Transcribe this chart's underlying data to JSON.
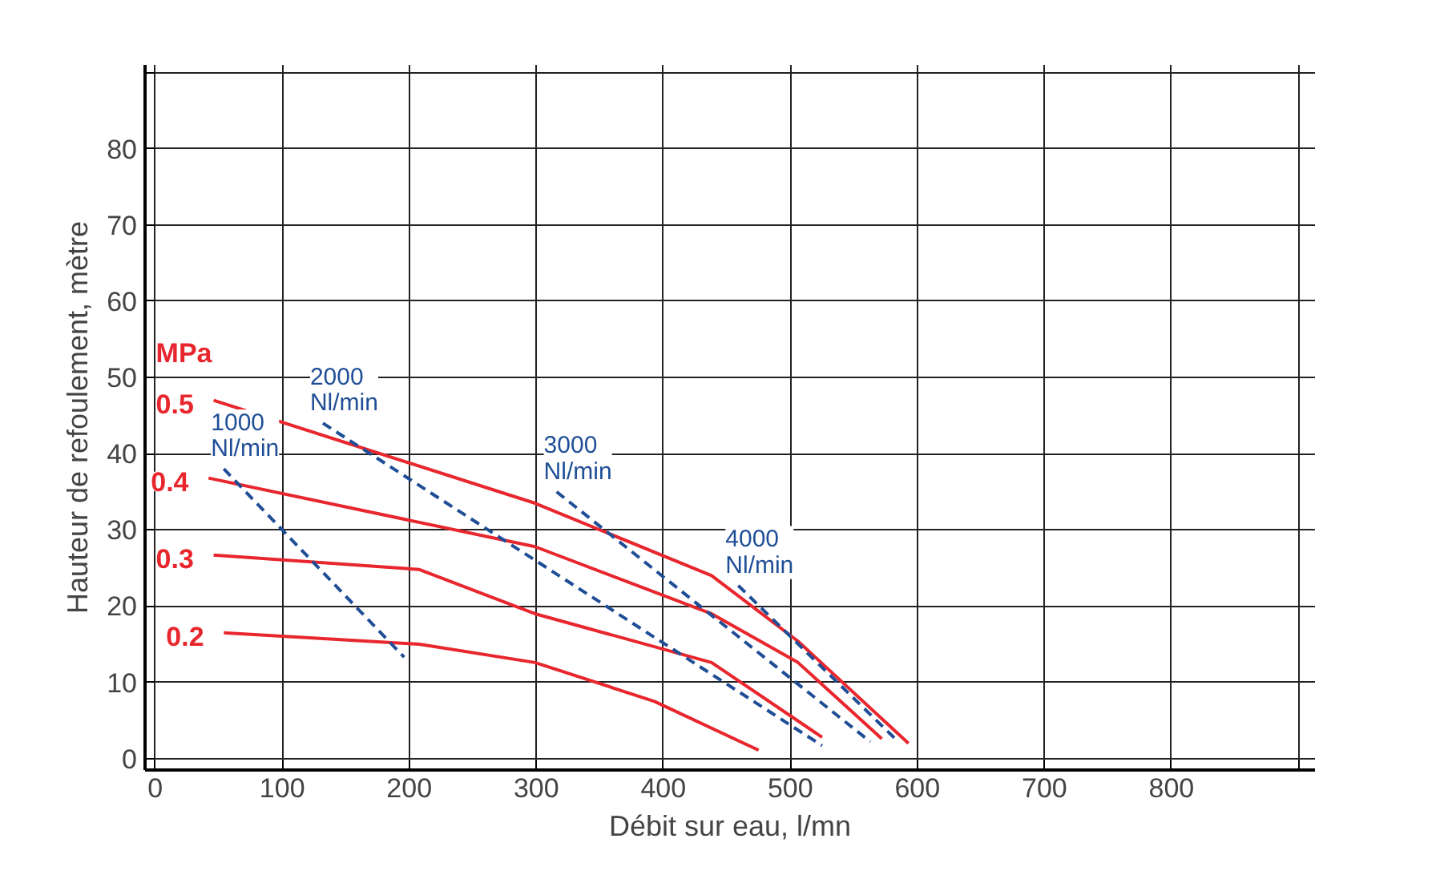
{
  "chart_data": {
    "type": "line",
    "xlabel": "Débit sur eau, l/mn",
    "ylabel": "Hauteur de refoulement, mètre",
    "xlim": [
      -8,
      913
    ],
    "ylim": [
      -1.5,
      91
    ],
    "xticks": [
      0,
      100,
      200,
      300,
      400,
      500,
      600,
      700,
      800,
      {
        "value": 900,
        "label": null
      }
    ],
    "yticks": [
      0,
      10,
      20,
      30,
      40,
      50,
      60,
      70,
      80,
      {
        "value": 90,
        "label": null
      }
    ],
    "grid": true,
    "annotations": [
      "MPa"
    ],
    "series": [
      {
        "name": "0.5",
        "color": "#e8262d",
        "line_style": "solid",
        "x": [
          46,
          299,
          438,
          506,
          593
        ],
        "values": [
          47,
          33.5,
          24,
          15.4,
          2
        ]
      },
      {
        "name": "0.4",
        "color": "#e8262d",
        "line_style": "solid",
        "x": [
          42,
          299,
          438,
          506,
          572
        ],
        "values": [
          36.8,
          27.8,
          19,
          12.6,
          2.6
        ]
      },
      {
        "name": "0.3",
        "color": "#e8262d",
        "line_style": "solid",
        "x": [
          46,
          208,
          299,
          438,
          525
        ],
        "values": [
          26.7,
          24.8,
          19,
          12.6,
          2.8
        ]
      },
      {
        "name": "0.2",
        "color": "#e8262d",
        "line_style": "solid",
        "x": [
          54,
          208,
          299,
          393,
          475
        ],
        "values": [
          16.5,
          15,
          12.6,
          7.5,
          1.1
        ]
      },
      {
        "name": "1000 Nl/min",
        "color": "#1f4e96",
        "line_style": "dashed",
        "x": [
          54,
          196
        ],
        "values": [
          38,
          13.3
        ]
      },
      {
        "name": "2000 Nl/min",
        "color": "#1f4e96",
        "line_style": "dashed",
        "x": [
          132,
          525
        ],
        "values": [
          44,
          1.7
        ]
      },
      {
        "name": "3000 Nl/min",
        "color": "#1f4e96",
        "line_style": "dashed",
        "x": [
          316,
          563
        ],
        "values": [
          35,
          2.2
        ]
      },
      {
        "name": "4000 Nl/min",
        "color": "#1f4e96",
        "line_style": "dashed",
        "x": [
          459,
          585
        ],
        "values": [
          22.7,
          2.2
        ]
      }
    ]
  }
}
